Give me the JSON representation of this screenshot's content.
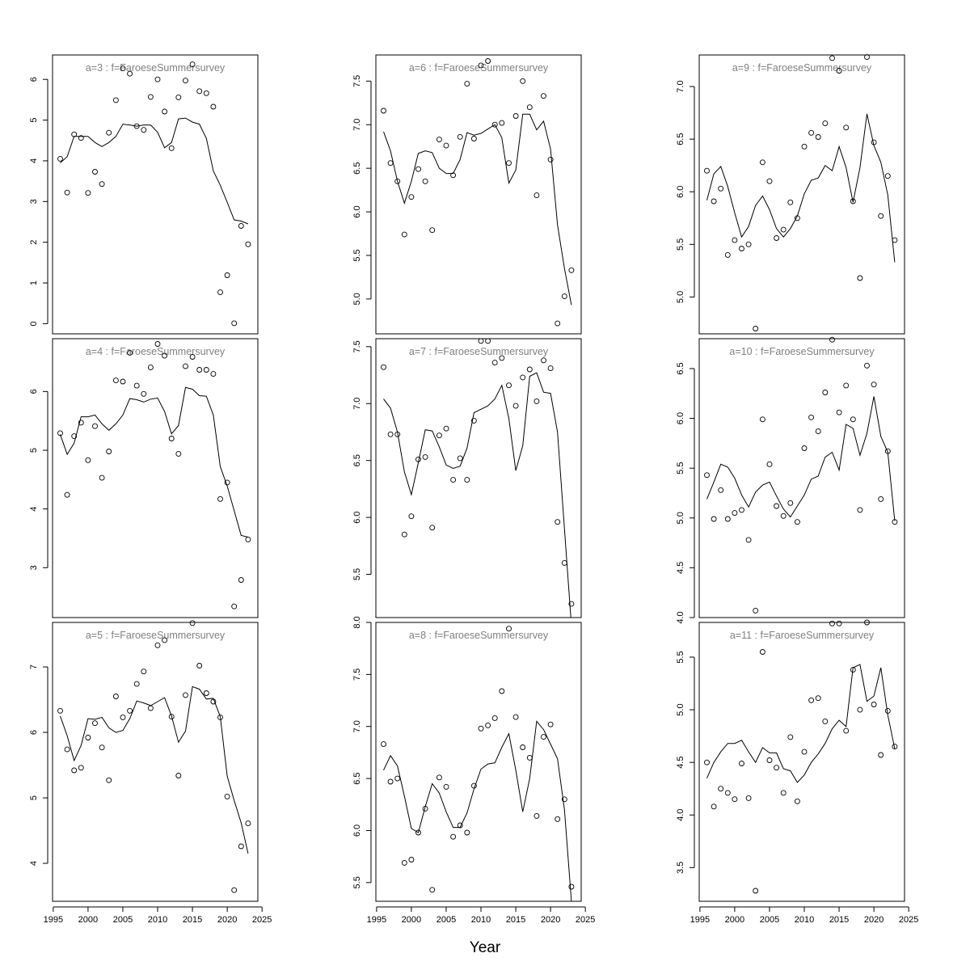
{
  "figure": {
    "xlabel": "Year"
  },
  "chart_data": [
    {
      "type": "scatter",
      "title": "a=3  :  f=FaroeseSummersurvey",
      "x_ticks": [
        1995,
        2000,
        2005,
        2010,
        2015,
        2020,
        2025
      ],
      "show_x_ticks": false,
      "xlim": [
        1994.9,
        2024.4
      ],
      "ylim": [
        -0.25,
        6.6
      ],
      "y_ticks": [
        0,
        1,
        2,
        3,
        4,
        5,
        6
      ],
      "years": [
        1996,
        1997,
        1998,
        1999,
        2000,
        2001,
        2002,
        2003,
        2004,
        2005,
        2006,
        2007,
        2008,
        2009,
        2010,
        2011,
        2012,
        2013,
        2014,
        2015,
        2016,
        2017,
        2018,
        2019,
        2020,
        2021,
        2022,
        2023
      ],
      "observed": [
        4.05,
        3.22,
        4.65,
        4.56,
        3.21,
        3.73,
        3.43,
        4.69,
        5.49,
        6.27,
        6.14,
        4.85,
        4.76,
        5.57,
        6.0,
        5.21,
        4.31,
        5.56,
        5.97,
        6.37,
        5.71,
        5.66,
        5.33,
        0.77,
        1.19,
        0.01,
        2.4,
        1.95
      ],
      "fitted": [
        3.95,
        4.1,
        4.6,
        4.6,
        4.6,
        4.45,
        4.35,
        4.45,
        4.6,
        4.9,
        4.88,
        4.85,
        4.88,
        4.88,
        4.7,
        4.32,
        4.45,
        5.03,
        5.05,
        4.95,
        4.9,
        4.55,
        3.75,
        3.4,
        2.98,
        2.55,
        2.52,
        2.45
      ]
    },
    {
      "type": "scatter",
      "title": "a=6  :  f=FaroeseSummersurvey",
      "x_ticks": [
        1995,
        2000,
        2005,
        2010,
        2015,
        2020,
        2025
      ],
      "show_x_ticks": false,
      "xlim": [
        1994.9,
        2024.4
      ],
      "ylim": [
        4.6,
        7.8
      ],
      "y_ticks": [
        5.0,
        5.5,
        6.0,
        6.5,
        7.0,
        7.5
      ],
      "years": [
        1996,
        1997,
        1998,
        1999,
        2000,
        2001,
        2002,
        2003,
        2004,
        2005,
        2006,
        2007,
        2008,
        2009,
        2010,
        2011,
        2012,
        2013,
        2014,
        2015,
        2016,
        2017,
        2018,
        2019,
        2020,
        2021,
        2022,
        2023
      ],
      "observed": [
        7.16,
        6.56,
        6.35,
        5.74,
        6.17,
        6.49,
        6.35,
        5.79,
        6.83,
        6.76,
        6.42,
        6.86,
        7.47,
        6.84,
        7.68,
        7.73,
        7.0,
        7.02,
        6.56,
        7.1,
        7.5,
        7.2,
        6.19,
        7.33,
        6.6,
        4.72,
        5.03,
        5.33
      ],
      "fitted": [
        6.92,
        6.7,
        6.35,
        6.1,
        6.35,
        6.67,
        6.7,
        6.68,
        6.5,
        6.44,
        6.44,
        6.6,
        6.91,
        6.88,
        6.9,
        6.95,
        7.0,
        6.85,
        6.33,
        6.48,
        7.12,
        7.12,
        6.94,
        7.04,
        6.72,
        5.85,
        5.35,
        4.93
      ]
    },
    {
      "type": "scatter",
      "title": "a=9  :  f=FaroeseSummersurvey",
      "x_ticks": [
        1995,
        2000,
        2005,
        2010,
        2015,
        2020,
        2025
      ],
      "show_x_ticks": false,
      "xlim": [
        1994.9,
        2024.4
      ],
      "ylim": [
        4.65,
        7.3
      ],
      "y_ticks": [
        5.0,
        5.5,
        6.0,
        6.5,
        7.0
      ],
      "years": [
        1996,
        1997,
        1998,
        1999,
        2000,
        2001,
        2002,
        2003,
        2004,
        2005,
        2006,
        2007,
        2008,
        2009,
        2010,
        2011,
        2012,
        2013,
        2014,
        2015,
        2016,
        2017,
        2018,
        2019,
        2020,
        2021,
        2022,
        2023
      ],
      "observed": [
        6.2,
        5.91,
        6.03,
        5.4,
        5.54,
        5.46,
        5.5,
        4.7,
        6.28,
        6.1,
        5.56,
        5.64,
        5.9,
        5.75,
        6.43,
        6.56,
        6.52,
        6.65,
        7.27,
        7.15,
        6.61,
        5.91,
        5.18,
        7.28,
        6.47,
        5.77,
        6.15,
        5.54
      ],
      "fitted": [
        5.92,
        6.17,
        6.24,
        6.05,
        5.8,
        5.57,
        5.67,
        5.87,
        5.96,
        5.83,
        5.65,
        5.57,
        5.65,
        5.77,
        5.98,
        6.11,
        6.13,
        6.25,
        6.2,
        6.43,
        6.23,
        5.9,
        6.23,
        6.74,
        6.44,
        6.28,
        5.97,
        5.33
      ]
    },
    {
      "type": "scatter",
      "title": "a=4  :  f=FaroeseSummersurvey",
      "x_ticks": [
        1995,
        2000,
        2005,
        2010,
        2015,
        2020,
        2025
      ],
      "show_x_ticks": false,
      "xlim": [
        1994.9,
        2024.4
      ],
      "ylim": [
        2.15,
        6.9
      ],
      "y_ticks": [
        3,
        4,
        5,
        6
      ],
      "years": [
        1996,
        1997,
        1998,
        1999,
        2000,
        2001,
        2002,
        2003,
        2004,
        2005,
        2006,
        2007,
        2008,
        2009,
        2010,
        2011,
        2012,
        2013,
        2014,
        2015,
        2016,
        2017,
        2018,
        2019,
        2020,
        2021,
        2022,
        2023
      ],
      "observed": [
        5.29,
        4.24,
        5.24,
        5.47,
        4.83,
        5.41,
        4.53,
        4.98,
        6.19,
        6.17,
        6.66,
        6.1,
        5.96,
        6.41,
        6.81,
        6.61,
        5.2,
        4.94,
        6.43,
        6.59,
        6.37,
        6.37,
        6.3,
        4.17,
        4.45,
        2.34,
        2.79,
        3.48
      ],
      "fitted": [
        5.27,
        4.93,
        5.12,
        5.57,
        5.57,
        5.6,
        5.45,
        5.34,
        5.45,
        5.6,
        5.88,
        5.86,
        5.82,
        5.87,
        5.89,
        5.66,
        5.28,
        5.42,
        6.07,
        6.04,
        5.93,
        5.92,
        5.6,
        4.72,
        4.39,
        3.97,
        3.55,
        3.52
      ]
    },
    {
      "type": "scatter",
      "title": "a=7  :  f=FaroeseSummersurvey",
      "x_ticks": [
        1995,
        2000,
        2005,
        2010,
        2015,
        2020,
        2025
      ],
      "show_x_ticks": false,
      "xlim": [
        1994.9,
        2024.4
      ],
      "ylim": [
        5.12,
        7.57
      ],
      "y_ticks": [
        5.5,
        6.0,
        6.5,
        7.0,
        7.5
      ],
      "years": [
        1996,
        1997,
        1998,
        1999,
        2000,
        2001,
        2002,
        2003,
        2004,
        2005,
        2006,
        2007,
        2008,
        2009,
        2010,
        2011,
        2012,
        2013,
        2014,
        2015,
        2016,
        2017,
        2018,
        2019,
        2020,
        2021,
        2022,
        2023
      ],
      "observed": [
        7.32,
        6.73,
        6.73,
        5.85,
        6.01,
        6.51,
        6.53,
        5.91,
        6.72,
        6.78,
        6.33,
        6.52,
        6.33,
        6.85,
        7.55,
        7.55,
        7.36,
        7.4,
        7.16,
        6.98,
        7.23,
        7.3,
        7.02,
        7.38,
        7.31,
        5.96,
        5.6,
        5.24
      ],
      "fitted": [
        7.04,
        6.96,
        6.75,
        6.4,
        6.2,
        6.48,
        6.77,
        6.76,
        6.62,
        6.46,
        6.43,
        6.45,
        6.61,
        6.92,
        6.95,
        6.98,
        7.04,
        7.16,
        6.87,
        6.41,
        6.63,
        7.24,
        7.27,
        7.1,
        7.09,
        6.75,
        5.9,
        5.05
      ]
    },
    {
      "type": "scatter",
      "title": "a=10  :  f=FaroeseSummersurvey",
      "x_ticks": [
        1995,
        2000,
        2005,
        2010,
        2015,
        2020,
        2025
      ],
      "show_x_ticks": false,
      "xlim": [
        1994.9,
        2024.4
      ],
      "ylim": [
        4.0,
        6.8
      ],
      "y_ticks": [
        4.0,
        4.5,
        5.0,
        5.5,
        6.0,
        6.5
      ],
      "years": [
        1996,
        1997,
        1998,
        1999,
        2000,
        2001,
        2002,
        2003,
        2004,
        2005,
        2006,
        2007,
        2008,
        2009,
        2010,
        2011,
        2012,
        2013,
        2014,
        2015,
        2016,
        2017,
        2018,
        2019,
        2020,
        2021,
        2022,
        2023
      ],
      "observed": [
        5.43,
        4.99,
        5.28,
        4.99,
        5.05,
        5.08,
        4.78,
        4.07,
        5.99,
        5.54,
        5.12,
        5.02,
        5.15,
        4.96,
        5.7,
        6.01,
        5.87,
        6.26,
        6.79,
        6.06,
        6.33,
        5.99,
        5.08,
        6.53,
        6.34,
        5.19,
        5.67,
        4.96
      ],
      "fitted": [
        5.19,
        5.36,
        5.54,
        5.51,
        5.4,
        5.23,
        5.11,
        5.26,
        5.33,
        5.36,
        5.22,
        5.09,
        5.01,
        5.12,
        5.23,
        5.39,
        5.42,
        5.61,
        5.66,
        5.48,
        5.94,
        5.9,
        5.63,
        5.85,
        6.22,
        5.82,
        5.66,
        4.97
      ]
    },
    {
      "type": "scatter",
      "title": "a=5  :  f=FaroeseSummersurvey",
      "x_ticks": [
        1995,
        2000,
        2005,
        2010,
        2015,
        2020,
        2025
      ],
      "show_x_ticks": true,
      "xlim": [
        1994.9,
        2024.4
      ],
      "ylim": [
        3.42,
        7.68
      ],
      "y_ticks": [
        4,
        5,
        6,
        7
      ],
      "years": [
        1996,
        1997,
        1998,
        1999,
        2000,
        2001,
        2002,
        2003,
        2004,
        2005,
        2006,
        2007,
        2008,
        2009,
        2010,
        2011,
        2012,
        2013,
        2014,
        2015,
        2016,
        2017,
        2018,
        2019,
        2020,
        2021,
        2022,
        2023
      ],
      "observed": [
        6.33,
        5.74,
        5.42,
        5.46,
        5.92,
        6.14,
        5.77,
        5.27,
        6.55,
        6.23,
        6.33,
        6.74,
        6.93,
        6.37,
        7.33,
        7.41,
        6.24,
        5.34,
        6.57,
        7.67,
        7.02,
        6.6,
        6.47,
        6.23,
        5.02,
        3.59,
        4.26,
        4.61
      ],
      "fitted": [
        6.25,
        5.95,
        5.57,
        5.8,
        6.21,
        6.2,
        6.23,
        6.07,
        6.0,
        6.03,
        6.21,
        6.48,
        6.45,
        6.41,
        6.47,
        6.53,
        6.25,
        5.85,
        6.02,
        6.7,
        6.66,
        6.51,
        6.52,
        6.24,
        5.33,
        4.96,
        4.62,
        4.15
      ]
    },
    {
      "type": "scatter",
      "title": "a=8  :  f=FaroeseSummersurvey",
      "x_ticks": [
        1995,
        2000,
        2005,
        2010,
        2015,
        2020,
        2025
      ],
      "show_x_ticks": true,
      "xlim": [
        1994.9,
        2024.4
      ],
      "ylim": [
        5.32,
        8.0
      ],
      "y_ticks": [
        5.5,
        6.0,
        6.5,
        7.0,
        7.5,
        8.0
      ],
      "years": [
        1996,
        1997,
        1998,
        1999,
        2000,
        2001,
        2002,
        2003,
        2004,
        2005,
        2006,
        2007,
        2008,
        2009,
        2010,
        2011,
        2012,
        2013,
        2014,
        2015,
        2016,
        2017,
        2018,
        2019,
        2020,
        2021,
        2022,
        2023
      ],
      "observed": [
        6.83,
        6.47,
        6.5,
        5.69,
        5.72,
        5.98,
        6.21,
        5.43,
        6.51,
        6.42,
        5.94,
        6.05,
        5.98,
        6.43,
        6.98,
        7.01,
        7.08,
        7.34,
        7.94,
        7.09,
        6.8,
        6.7,
        6.14,
        6.9,
        7.02,
        6.11,
        6.3,
        5.46
      ],
      "fitted": [
        6.58,
        6.72,
        6.62,
        6.33,
        6.02,
        5.98,
        6.23,
        6.45,
        6.36,
        6.18,
        6.03,
        6.03,
        6.17,
        6.4,
        6.59,
        6.64,
        6.65,
        6.8,
        6.93,
        6.58,
        6.18,
        6.5,
        7.05,
        6.97,
        6.83,
        6.69,
        6.2,
        5.32
      ]
    },
    {
      "type": "scatter",
      "title": "a=11  :  f=FaroeseSummersurvey",
      "x_ticks": [
        1995,
        2000,
        2005,
        2010,
        2015,
        2020,
        2025
      ],
      "show_x_ticks": true,
      "xlim": [
        1994.9,
        2024.4
      ],
      "ylim": [
        3.18,
        5.83
      ],
      "y_ticks": [
        3.5,
        4.0,
        4.5,
        5.0,
        5.5
      ],
      "years": [
        1996,
        1997,
        1998,
        1999,
        2000,
        2001,
        2002,
        2003,
        2004,
        2005,
        2006,
        2007,
        2008,
        2009,
        2010,
        2011,
        2012,
        2013,
        2014,
        2015,
        2016,
        2017,
        2018,
        2019,
        2020,
        2021,
        2022,
        2023
      ],
      "observed": [
        4.5,
        4.08,
        4.25,
        4.21,
        4.15,
        4.49,
        4.16,
        3.28,
        5.55,
        4.52,
        4.45,
        4.21,
        4.74,
        4.13,
        4.6,
        5.09,
        5.11,
        4.89,
        5.82,
        5.82,
        4.8,
        5.38,
        5.0,
        5.83,
        5.05,
        4.57,
        4.99,
        4.65
      ],
      "fitted": [
        4.35,
        4.5,
        4.6,
        4.68,
        4.68,
        4.71,
        4.6,
        4.5,
        4.64,
        4.59,
        4.59,
        4.44,
        4.42,
        4.31,
        4.38,
        4.5,
        4.58,
        4.68,
        4.82,
        4.9,
        4.84,
        5.4,
        5.43,
        5.08,
        5.13,
        5.4,
        4.95,
        4.63
      ]
    }
  ]
}
